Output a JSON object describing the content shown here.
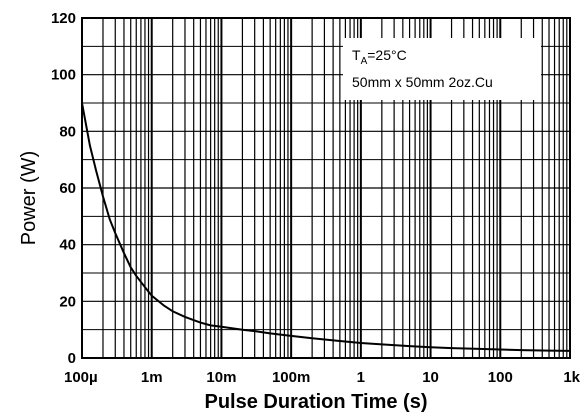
{
  "chart_data": {
    "type": "line",
    "title": "",
    "xlabel": "Pulse Duration Time (s)",
    "ylabel": "Power (W)",
    "x_scale": "log",
    "xlim": [
      0.0001,
      1000
    ],
    "ylim": [
      0,
      120
    ],
    "grid": true,
    "x_ticks": [
      {
        "value": 0.0001,
        "label": "100µ"
      },
      {
        "value": 0.001,
        "label": "1m"
      },
      {
        "value": 0.01,
        "label": "10m"
      },
      {
        "value": 0.1,
        "label": "100m"
      },
      {
        "value": 1,
        "label": "1"
      },
      {
        "value": 10,
        "label": "10"
      },
      {
        "value": 100,
        "label": "100"
      },
      {
        "value": 1000,
        "label": "1k"
      }
    ],
    "y_ticks": [
      {
        "value": 0,
        "label": "0"
      },
      {
        "value": 20,
        "label": "20"
      },
      {
        "value": 40,
        "label": "40"
      },
      {
        "value": 60,
        "label": "60"
      },
      {
        "value": 80,
        "label": "80"
      },
      {
        "value": 100,
        "label": "100"
      },
      {
        "value": 120,
        "label": "120"
      }
    ],
    "annotation": {
      "line1_main": "T",
      "line1_sub": "A",
      "line1_rest": "=25°C",
      "line2": "50mm x 50mm 2oz.Cu"
    },
    "series": [
      {
        "x": [
          0.0001,
          0.00013,
          0.00016,
          0.0002,
          0.00025,
          0.0003,
          0.0004,
          0.0005,
          0.0006,
          0.0008,
          0.001,
          0.0015,
          0.002,
          0.003,
          0.005,
          0.007,
          0.01,
          0.02,
          0.03,
          0.05,
          0.1,
          0.2,
          0.5,
          1,
          2,
          5,
          10,
          20,
          50,
          100,
          200,
          500,
          1000
        ],
        "y": [
          90,
          75,
          66,
          57,
          49,
          44,
          37,
          32,
          29,
          25,
          22,
          18.5,
          16.5,
          14.5,
          12.5,
          11.5,
          11,
          10,
          9.5,
          8.7,
          7.8,
          7,
          6,
          5.3,
          4.8,
          4.2,
          3.8,
          3.5,
          3.2,
          3,
          2.8,
          2.6,
          2.5
        ]
      }
    ]
  }
}
